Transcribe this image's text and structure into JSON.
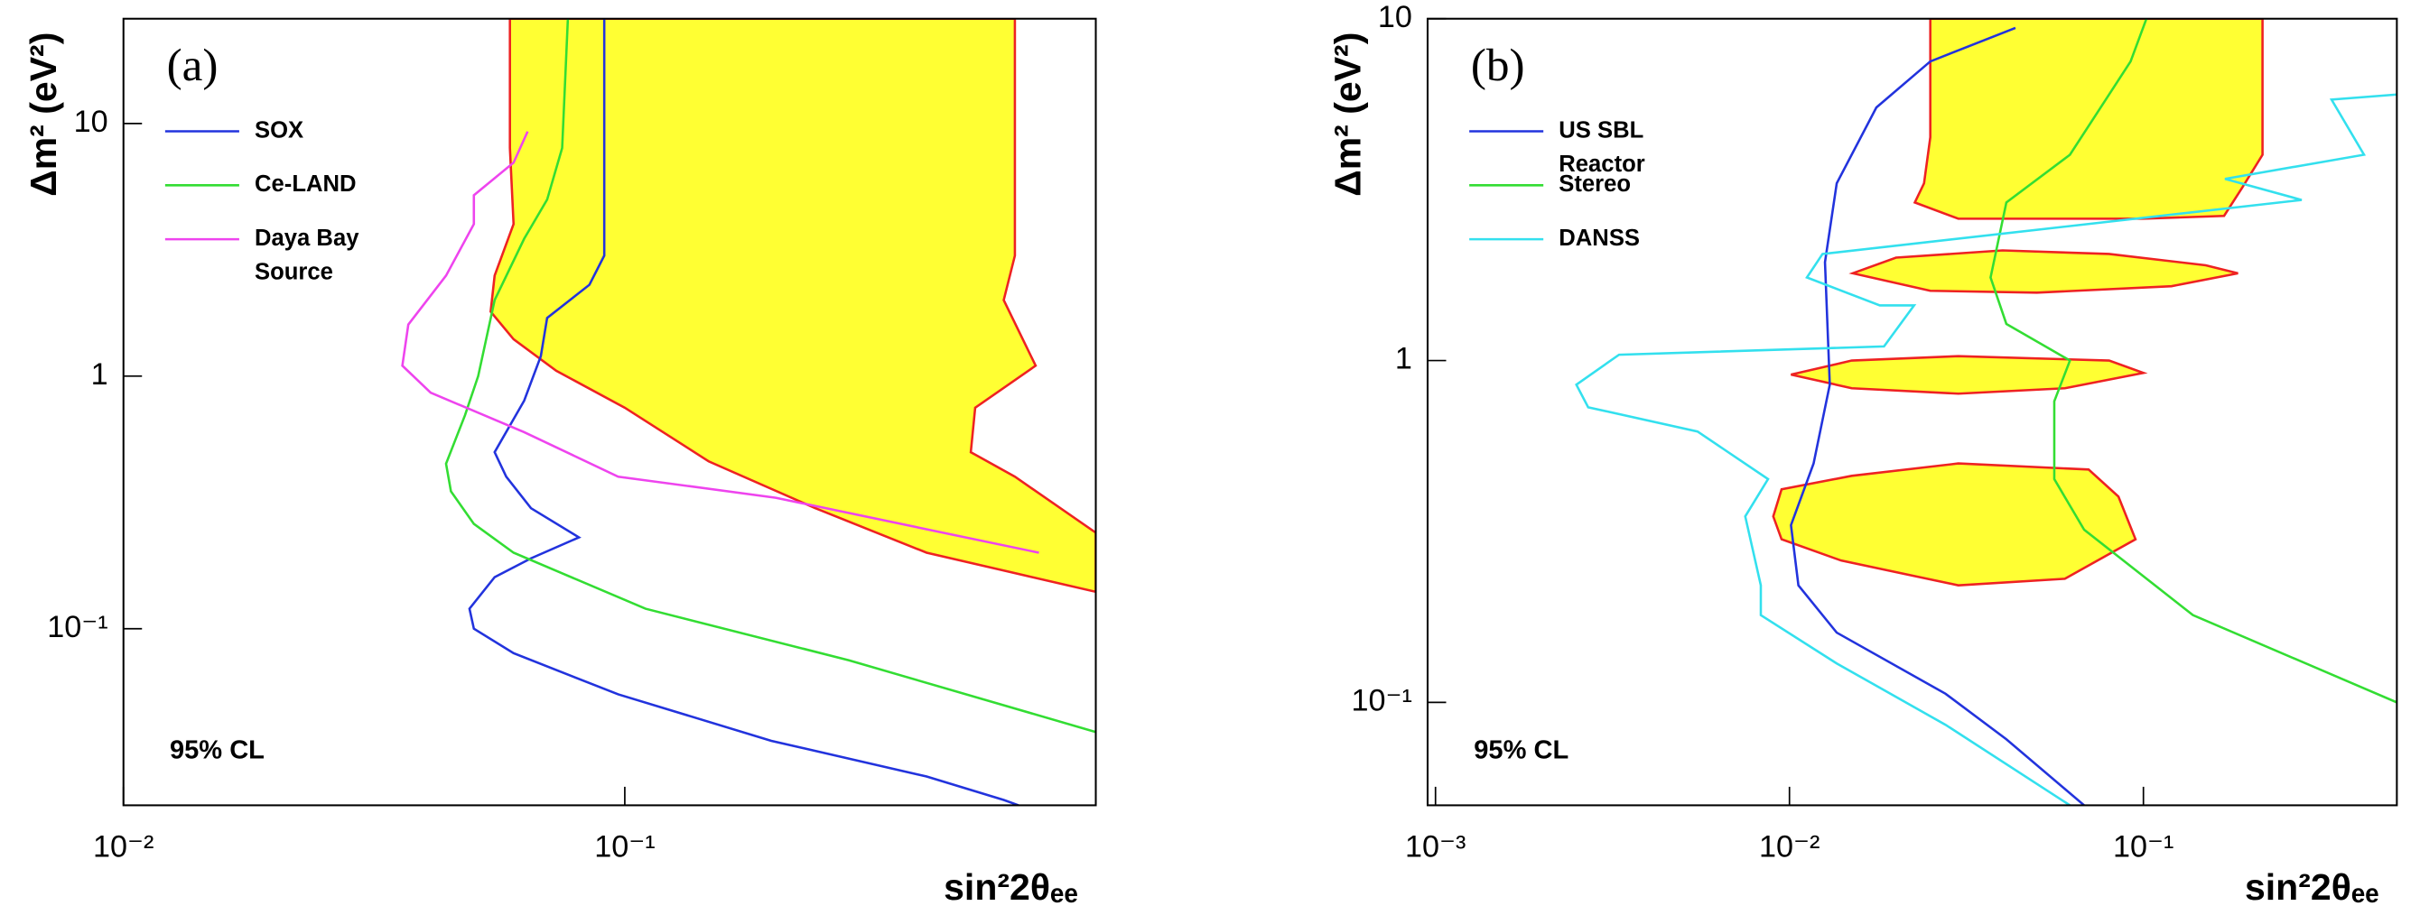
{
  "chart_data": [
    {
      "type": "line",
      "title": "(a)",
      "annotation": "95% CL",
      "xlabel": "sin²2θₑₑ",
      "ylabel": "Δm² (eV²)",
      "xscale": "log",
      "yscale": "log",
      "xlim": [
        0.01,
        0.87
      ],
      "ylim": [
        0.02,
        26
      ],
      "xticks": [
        {
          "value": 0.01,
          "label": "10⁻²"
        },
        {
          "value": 0.1,
          "label": "10⁻¹"
        }
      ],
      "yticks": [
        {
          "value": 0.1,
          "label": "10⁻¹"
        },
        1,
        10
      ],
      "regions": [
        {
          "color": "#ffff33",
          "edge": "#ee2222",
          "x": [
            0.059,
            0.059,
            0.06,
            0.055,
            0.054,
            0.06,
            0.073,
            0.1,
            0.147,
            0.24,
            0.4,
            0.87,
            0.87,
            0.6,
            0.49,
            0.5,
            0.66,
            0.57,
            0.6,
            0.6
          ],
          "values": [
            26,
            8,
            4,
            2.5,
            1.8,
            1.4,
            1.05,
            0.75,
            0.46,
            0.3,
            0.2,
            0.14,
            0.24,
            0.4,
            0.5,
            0.75,
            1.1,
            2,
            3,
            26
          ]
        }
      ],
      "series": [
        {
          "name": "SOX",
          "color": "#2233dd",
          "x": [
            0.091,
            0.091,
            0.085,
            0.07,
            0.068,
            0.063,
            0.055,
            0.058,
            0.065,
            0.081,
            0.065,
            0.055,
            0.049,
            0.05,
            0.06,
            0.097,
            0.196,
            0.4,
            0.57,
            0.61
          ],
          "values": [
            26,
            3,
            2.3,
            1.7,
            1.2,
            0.8,
            0.5,
            0.4,
            0.3,
            0.23,
            0.19,
            0.16,
            0.12,
            0.1,
            0.08,
            0.055,
            0.036,
            0.026,
            0.021,
            0.02
          ]
        },
        {
          "name": "Ce-LAND",
          "color": "#33dd33",
          "x": [
            0.077,
            0.075,
            0.07,
            0.063,
            0.055,
            0.051,
            0.048,
            0.044,
            0.045,
            0.05,
            0.06,
            0.11,
            0.28,
            0.87
          ],
          "values": [
            26,
            8,
            5,
            3.5,
            2,
            1,
            0.7,
            0.45,
            0.35,
            0.26,
            0.2,
            0.12,
            0.075,
            0.039
          ]
        },
        {
          "name": "Daya Bay Source",
          "color": "#ee44ee",
          "x": [
            0.064,
            0.06,
            0.05,
            0.05,
            0.044,
            0.037,
            0.036,
            0.041,
            0.063,
            0.097,
            0.2,
            0.67
          ],
          "values": [
            9.3,
            7,
            5.2,
            4,
            2.5,
            1.6,
            1.1,
            0.86,
            0.6,
            0.4,
            0.33,
            0.2
          ]
        }
      ]
    },
    {
      "type": "line",
      "title": "(b)",
      "annotation": "95% CL",
      "xlabel": "sin²2θₑₑ",
      "ylabel": "Δm² (eV²)",
      "xscale": "log",
      "yscale": "log",
      "xlim": [
        0.00095,
        0.52
      ],
      "ylim": [
        0.05,
        10
      ],
      "xticks": [
        {
          "value": 0.001,
          "label": "10⁻³"
        },
        {
          "value": 0.01,
          "label": "10⁻²"
        },
        {
          "value": 0.1,
          "label": "10⁻¹"
        }
      ],
      "yticks": [
        {
          "value": 0.1,
          "label": "10⁻¹"
        },
        1,
        10
      ],
      "regions": [
        {
          "color": "#ffff33",
          "edge": "#ee2222",
          "x": [
            0.025,
            0.025,
            0.024,
            0.0226,
            0.03,
            0.1,
            0.169,
            0.19,
            0.217,
            0.217
          ],
          "values": [
            10,
            4.5,
            3.3,
            2.9,
            2.6,
            2.6,
            2.65,
            3.2,
            4,
            10
          ]
        },
        {
          "color": "#ffff33",
          "edge": "#ee2222",
          "x": [
            0.0151,
            0.02,
            0.04,
            0.08,
            0.15,
            0.185,
            0.12,
            0.05,
            0.025
          ],
          "values": [
            1.8,
            2.0,
            2.1,
            2.05,
            1.9,
            1.8,
            1.65,
            1.58,
            1.6
          ]
        },
        {
          "color": "#ffff33",
          "edge": "#ee2222",
          "x": [
            0.0101,
            0.015,
            0.03,
            0.08,
            0.1,
            0.06,
            0.03,
            0.015
          ],
          "values": [
            0.91,
            1.0,
            1.03,
            1.0,
            0.92,
            0.83,
            0.8,
            0.83
          ]
        },
        {
          "color": "#ffff33",
          "edge": "#ee2222",
          "x": [
            0.009,
            0.0095,
            0.015,
            0.03,
            0.07,
            0.085,
            0.095,
            0.06,
            0.03,
            0.014,
            0.0095
          ],
          "values": [
            0.35,
            0.42,
            0.46,
            0.5,
            0.48,
            0.4,
            0.3,
            0.23,
            0.22,
            0.26,
            0.3
          ]
        }
      ],
      "series": [
        {
          "name": "US SBL Reactor",
          "color": "#2233dd",
          "x": [
            0.0435,
            0.025,
            0.0176,
            0.0136,
            0.0126,
            0.013,
            0.0117,
            0.0101,
            0.0106,
            0.0136,
            0.0276,
            0.041,
            0.068
          ],
          "values": [
            9.4,
            7.5,
            5.5,
            3.3,
            1.94,
            0.85,
            0.5,
            0.33,
            0.22,
            0.16,
            0.106,
            0.078,
            0.05
          ]
        },
        {
          "name": "Stereo",
          "color": "#33dd33",
          "x": [
            0.102,
            0.092,
            0.062,
            0.041,
            0.037,
            0.041,
            0.062,
            0.056,
            0.056,
            0.068,
            0.138,
            0.52
          ],
          "values": [
            10,
            7.5,
            4,
            2.9,
            1.75,
            1.28,
            1.0,
            0.76,
            0.45,
            0.32,
            0.18,
            0.1
          ]
        },
        {
          "name": "DANSS",
          "color": "#33e0ee",
          "x": [
            0.52,
            0.34,
            0.42,
            0.17,
            0.28,
            0.0124,
            0.0112,
            0.018,
            0.0225,
            0.0185,
            0.0033,
            0.0025,
            0.0027,
            0.0055,
            0.0087,
            0.0075,
            0.0083,
            0.0083,
            0.0136,
            0.0276,
            0.062
          ],
          "values": [
            6,
            5.8,
            4,
            3.4,
            2.95,
            2.05,
            1.75,
            1.45,
            1.45,
            1.1,
            1.04,
            0.85,
            0.73,
            0.62,
            0.45,
            0.35,
            0.22,
            0.18,
            0.13,
            0.086,
            0.05
          ]
        }
      ]
    }
  ]
}
